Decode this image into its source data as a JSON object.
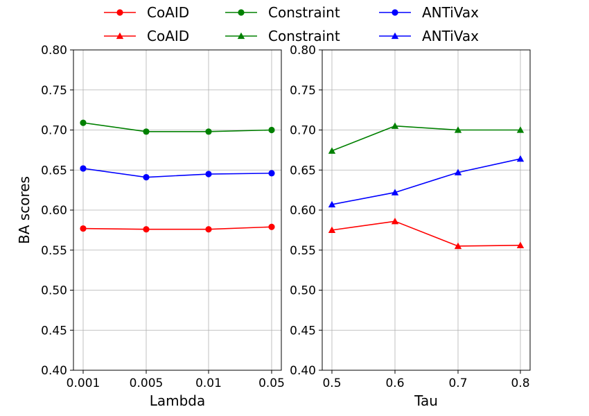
{
  "legend": {
    "placement": "top-center",
    "entries": [
      {
        "label": "CoAID",
        "color": "#ff0000",
        "marker": "circle"
      },
      {
        "label": "Constraint",
        "color": "#008000",
        "marker": "circle"
      },
      {
        "label": "ANTiVax",
        "color": "#0000ff",
        "marker": "circle"
      },
      {
        "label": "CoAID",
        "color": "#ff0000",
        "marker": "triangle"
      },
      {
        "label": "Constraint",
        "color": "#008000",
        "marker": "triangle"
      },
      {
        "label": "ANTiVax",
        "color": "#0000ff",
        "marker": "triangle"
      }
    ]
  },
  "chart_data": [
    {
      "type": "line",
      "xlabel": "Lambda",
      "ylabel": "BA scores",
      "categories": [
        "0.001",
        "0.005",
        "0.01",
        "0.05"
      ],
      "ylim": [
        0.4,
        0.8
      ],
      "yticks": [
        "0.40",
        "0.45",
        "0.50",
        "0.55",
        "0.60",
        "0.65",
        "0.70",
        "0.75",
        "0.80"
      ],
      "grid": true,
      "series": [
        {
          "name": "CoAID",
          "color": "#ff0000",
          "marker": "circle",
          "values": [
            0.577,
            0.576,
            0.576,
            0.579
          ]
        },
        {
          "name": "Constraint",
          "color": "#008000",
          "marker": "circle",
          "values": [
            0.709,
            0.698,
            0.698,
            0.7
          ]
        },
        {
          "name": "ANTiVax",
          "color": "#0000ff",
          "marker": "circle",
          "values": [
            0.652,
            0.641,
            0.645,
            0.646
          ]
        }
      ]
    },
    {
      "type": "line",
      "xlabel": "Tau",
      "ylabel": "",
      "categories": [
        "0.5",
        "0.6",
        "0.7",
        "0.8"
      ],
      "ylim": [
        0.4,
        0.8
      ],
      "yticks": [
        "0.40",
        "0.45",
        "0.50",
        "0.55",
        "0.60",
        "0.65",
        "0.70",
        "0.75",
        "0.80"
      ],
      "grid": true,
      "series": [
        {
          "name": "CoAID",
          "color": "#ff0000",
          "marker": "triangle",
          "values": [
            0.575,
            0.586,
            0.555,
            0.556
          ]
        },
        {
          "name": "Constraint",
          "color": "#008000",
          "marker": "triangle",
          "values": [
            0.674,
            0.705,
            0.7,
            0.7
          ]
        },
        {
          "name": "ANTiVax",
          "color": "#0000ff",
          "marker": "triangle",
          "values": [
            0.607,
            0.622,
            0.647,
            0.664
          ]
        }
      ]
    }
  ]
}
